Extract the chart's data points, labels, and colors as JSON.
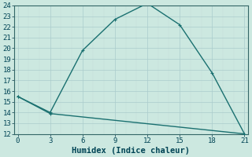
{
  "xlabel": "Humidex (Indice chaleur)",
  "line1_x": [
    0,
    3,
    6,
    9,
    12,
    15,
    18,
    21
  ],
  "line1_y": [
    15.5,
    14.0,
    19.8,
    22.7,
    24.2,
    22.2,
    17.7,
    12.0
  ],
  "line2_x": [
    0,
    3,
    21
  ],
  "line2_y": [
    15.5,
    13.9,
    12.0
  ],
  "line_color": "#1a7070",
  "bg_color": "#cce8e0",
  "grid_major_color": "#aacccc",
  "grid_minor_color": "#c4ddd8",
  "xlim": [
    -0.3,
    21.3
  ],
  "ylim": [
    12,
    24
  ],
  "xticks": [
    0,
    3,
    6,
    9,
    12,
    15,
    18,
    21
  ],
  "yticks": [
    12,
    13,
    14,
    15,
    16,
    17,
    18,
    19,
    20,
    21,
    22,
    23,
    24
  ],
  "tick_fontsize": 6.5,
  "xlabel_fontsize": 7.5,
  "marker_size": 3.5,
  "linewidth": 1.0
}
